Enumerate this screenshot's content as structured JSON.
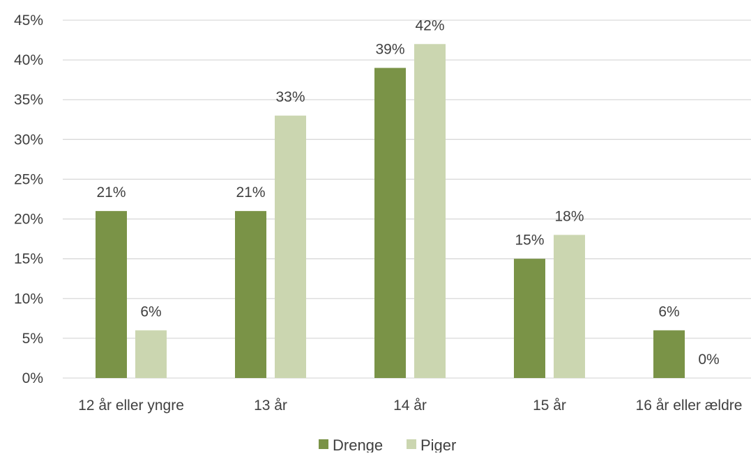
{
  "chart_data": {
    "type": "bar",
    "title": "",
    "xlabel": "",
    "ylabel": "",
    "categories": [
      "12 år eller yngre",
      "13 år",
      "14 år",
      "15 år",
      "16 år eller ældre"
    ],
    "series": [
      {
        "name": "Drenge",
        "color": "#7a9347",
        "values": [
          21,
          21,
          39,
          15,
          6
        ],
        "labels": [
          "21%",
          "21%",
          "39%",
          "15%",
          "6%"
        ]
      },
      {
        "name": "Piger",
        "color": "#cbd6b0",
        "values": [
          6,
          33,
          42,
          18,
          0
        ],
        "labels": [
          "6%",
          "33%",
          "42%",
          "18%",
          "0%"
        ]
      }
    ],
    "ylim": [
      0,
      45
    ],
    "yticks": [
      0,
      5,
      10,
      15,
      20,
      25,
      30,
      35,
      40,
      45
    ],
    "ytick_labels": [
      "0%",
      "5%",
      "10%",
      "15%",
      "20%",
      "25%",
      "30%",
      "35%",
      "40%",
      "45%"
    ],
    "grid": true,
    "gridline_color": "#d9d9d9",
    "legend_position": "bottom"
  }
}
